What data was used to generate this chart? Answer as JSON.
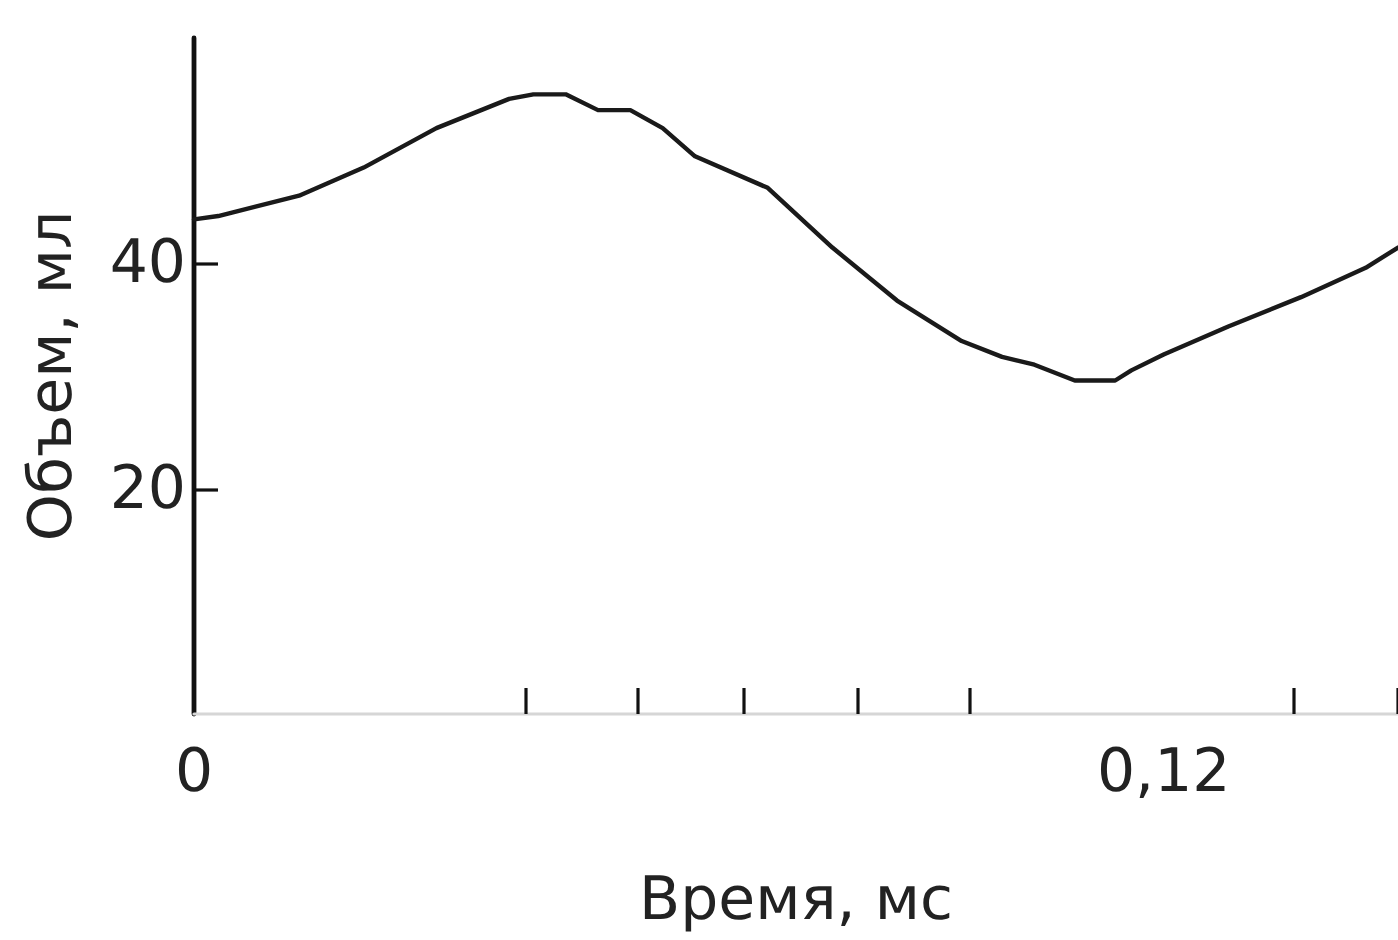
{
  "chart_data": {
    "type": "line",
    "xlabel": "Время, мс",
    "ylabel": "Объем, мл",
    "x": [
      0,
      0.003,
      0.013,
      0.021,
      0.03,
      0.039,
      0.042,
      0.046,
      0.05,
      0.054,
      0.058,
      0.062,
      0.071,
      0.079,
      0.087,
      0.095,
      0.1,
      0.104,
      0.109,
      0.114,
      0.116,
      0.12,
      0.128,
      0.137,
      0.145,
      0.149
    ],
    "series": [
      {
        "color": "#1a1a1a",
        "values": [
          43.9,
          44.2,
          46.0,
          48.5,
          52.0,
          54.6,
          55.0,
          55.0,
          53.6,
          53.6,
          52.0,
          49.5,
          46.7,
          41.4,
          36.7,
          33.1,
          31.7,
          31.0,
          29.6,
          29.6,
          30.5,
          31.9,
          34.4,
          37.0,
          39.6,
          41.4
        ]
      }
    ],
    "xlim": [
      0,
      0.149
    ],
    "ylim": [
      0,
      60
    ],
    "xticks": [
      0,
      {
        "value": 0.041,
        "label": null
      },
      {
        "value": 0.055,
        "label": null
      },
      {
        "value": 0.068,
        "label": null
      },
      {
        "value": 0.082,
        "label": null
      },
      {
        "value": 0.096,
        "label": null
      },
      {
        "value": 0.12,
        "label": "0,12"
      },
      {
        "value": 0.136,
        "label": null
      },
      {
        "value": 0.149,
        "label": null
      }
    ],
    "yticks": [
      20,
      40
    ],
    "marker": "none"
  }
}
